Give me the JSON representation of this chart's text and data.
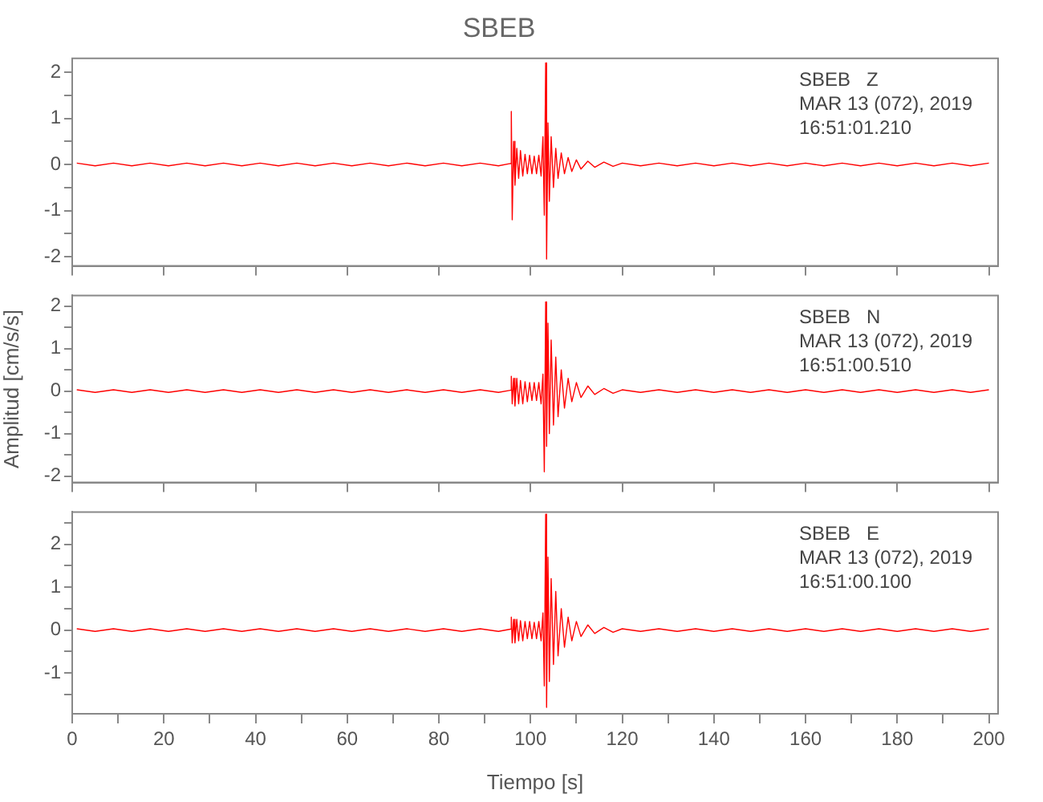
{
  "chart_data": [
    {
      "type": "line",
      "title": "SBEB",
      "annotations": [
        "SBEB   Z",
        "MAR 13 (072), 2019",
        "16:51:01.210"
      ],
      "tick_labels": "y",
      "xlim": [
        0,
        202
      ],
      "ylim": [
        -2.2,
        2.3
      ],
      "xticks": [
        0,
        20,
        40,
        60,
        80,
        100,
        120,
        140,
        160,
        180,
        200
      ],
      "yticks": [
        -2,
        {
          "value": -1.5,
          "label": null
        },
        -1,
        {
          "value": -0.5,
          "label": null
        },
        0,
        {
          "value": 0.5,
          "label": null
        },
        1,
        {
          "value": 1.5,
          "label": null
        },
        2
      ],
      "series": [
        {
          "color": "#ff0000",
          "x": [
            1,
            5,
            9,
            13,
            17,
            21,
            25,
            29,
            33,
            37,
            41,
            45,
            49,
            53,
            57,
            61,
            65,
            69,
            73,
            77,
            81,
            85,
            89,
            93,
            95.6,
            95.8,
            96.0,
            96.3,
            96.6,
            97.0,
            97.4,
            97.8,
            98.3,
            98.8,
            99.3,
            99.8,
            100.3,
            100.8,
            101.3,
            101.8,
            102.3,
            102.7,
            103.0,
            103.3,
            103.5,
            103.8,
            104.1,
            104.5,
            105.0,
            105.5,
            106.0,
            106.7,
            107.4,
            108.2,
            109.0,
            110,
            111,
            112.5,
            114,
            116,
            118,
            120,
            124,
            128,
            132,
            136,
            140,
            144,
            148,
            152,
            156,
            160,
            164,
            168,
            172,
            176,
            180,
            184,
            188,
            192,
            196,
            200
          ],
          "values": [
            0.03,
            -0.03,
            0.03,
            -0.03,
            0.03,
            -0.03,
            0.03,
            -0.03,
            0.03,
            -0.03,
            0.03,
            -0.03,
            0.03,
            -0.03,
            0.03,
            -0.03,
            0.03,
            -0.03,
            0.03,
            -0.03,
            0.03,
            -0.03,
            0.03,
            -0.03,
            0.02,
            1.15,
            -1.2,
            0.5,
            -0.45,
            0.35,
            -0.3,
            0.3,
            -0.25,
            0.22,
            -0.2,
            0.2,
            -0.2,
            0.18,
            -0.2,
            0.2,
            -0.25,
            0.6,
            -1.1,
            2.2,
            -2.05,
            0.9,
            -0.8,
            0.6,
            -0.5,
            0.35,
            -0.3,
            0.25,
            -0.2,
            0.15,
            -0.15,
            0.1,
            -0.1,
            0.07,
            -0.06,
            0.05,
            -0.04,
            0.03,
            -0.03,
            0.03,
            -0.03,
            0.03,
            -0.03,
            0.03,
            -0.03,
            0.03,
            -0.03,
            0.03,
            -0.03,
            0.03,
            -0.03,
            0.03,
            -0.03,
            0.03,
            -0.03,
            0.03,
            -0.03,
            0.03
          ]
        }
      ]
    },
    {
      "type": "line",
      "ylabel": "Amplitud [cm/s/s]",
      "annotations": [
        "SBEB   N",
        "MAR 13 (072), 2019",
        "16:51:00.510"
      ],
      "tick_labels": "y",
      "xlim": [
        0,
        202
      ],
      "ylim": [
        -2.15,
        2.25
      ],
      "xticks": [
        0,
        20,
        40,
        60,
        80,
        100,
        120,
        140,
        160,
        180,
        200
      ],
      "yticks": [
        -2,
        {
          "value": -1.5,
          "label": null
        },
        -1,
        {
          "value": -0.5,
          "label": null
        },
        0,
        {
          "value": 0.5,
          "label": null
        },
        1,
        {
          "value": 1.5,
          "label": null
        },
        2
      ],
      "series": [
        {
          "color": "#ff0000",
          "x": [
            1,
            5,
            9,
            13,
            17,
            21,
            25,
            29,
            33,
            37,
            41,
            45,
            49,
            53,
            57,
            61,
            65,
            69,
            73,
            77,
            81,
            85,
            89,
            93,
            95.6,
            95.8,
            96.0,
            96.3,
            96.6,
            97.0,
            97.4,
            97.8,
            98.3,
            98.8,
            99.3,
            99.8,
            100.3,
            100.8,
            101.3,
            101.8,
            102.3,
            102.7,
            103.0,
            103.3,
            103.5,
            103.8,
            104.1,
            104.5,
            105.0,
            105.5,
            106.0,
            106.7,
            107.4,
            108.2,
            109.0,
            110,
            111,
            112.5,
            114,
            116,
            118,
            120,
            124,
            128,
            132,
            136,
            140,
            144,
            148,
            152,
            156,
            160,
            164,
            168,
            172,
            176,
            180,
            184,
            188,
            192,
            196,
            200
          ],
          "values": [
            0.03,
            -0.03,
            0.03,
            -0.03,
            0.03,
            -0.03,
            0.03,
            -0.03,
            0.03,
            -0.03,
            0.03,
            -0.03,
            0.03,
            -0.03,
            0.03,
            -0.03,
            0.03,
            -0.03,
            0.03,
            -0.03,
            0.03,
            -0.03,
            0.03,
            -0.03,
            0.02,
            0.35,
            -0.3,
            0.3,
            -0.35,
            0.3,
            -0.3,
            0.25,
            -0.3,
            0.22,
            -0.25,
            0.2,
            -0.22,
            0.2,
            -0.22,
            0.2,
            -0.3,
            0.4,
            -1.9,
            2.1,
            -1.3,
            1.6,
            -1.0,
            1.2,
            -0.8,
            0.8,
            -0.6,
            0.5,
            -0.4,
            0.3,
            -0.25,
            0.2,
            -0.15,
            0.12,
            -0.08,
            0.06,
            -0.05,
            0.03,
            -0.03,
            0.03,
            -0.03,
            0.03,
            -0.03,
            0.03,
            -0.03,
            0.03,
            -0.03,
            0.03,
            -0.03,
            0.03,
            -0.03,
            0.03,
            -0.03,
            0.03,
            -0.03,
            0.03,
            -0.03,
            0.03
          ]
        }
      ]
    },
    {
      "type": "line",
      "xlabel": "Tiempo [s]",
      "annotations": [
        "SBEB   E",
        "MAR 13 (072), 2019",
        "16:51:00.100"
      ],
      "xlim": [
        0,
        202
      ],
      "ylim": [
        -1.95,
        2.75
      ],
      "xticks": [
        0,
        {
          "value": 10,
          "label": null
        },
        20,
        {
          "value": 30,
          "label": null
        },
        40,
        {
          "value": 50,
          "label": null
        },
        60,
        {
          "value": 70,
          "label": null
        },
        80,
        {
          "value": 90,
          "label": null
        },
        100,
        {
          "value": 110,
          "label": null
        },
        120,
        {
          "value": 130,
          "label": null
        },
        140,
        {
          "value": 150,
          "label": null
        },
        160,
        {
          "value": 170,
          "label": null
        },
        180,
        {
          "value": 190,
          "label": null
        },
        200
      ],
      "yticks": [
        {
          "value": -1.5,
          "label": null
        },
        -1,
        {
          "value": -0.5,
          "label": null
        },
        0,
        {
          "value": 0.5,
          "label": null
        },
        1,
        {
          "value": 1.5,
          "label": null
        },
        2,
        {
          "value": 2.5,
          "label": null
        }
      ],
      "series": [
        {
          "color": "#ff0000",
          "x": [
            1,
            5,
            9,
            13,
            17,
            21,
            25,
            29,
            33,
            37,
            41,
            45,
            49,
            53,
            57,
            61,
            65,
            69,
            73,
            77,
            81,
            85,
            89,
            93,
            95.6,
            95.8,
            96.0,
            96.3,
            96.6,
            97.0,
            97.4,
            97.8,
            98.3,
            98.8,
            99.3,
            99.8,
            100.3,
            100.8,
            101.3,
            101.8,
            102.3,
            102.7,
            103.0,
            103.3,
            103.5,
            103.8,
            104.1,
            104.5,
            105.0,
            105.5,
            106.0,
            106.7,
            107.4,
            108.2,
            109.0,
            110,
            111,
            112.5,
            114,
            116,
            118,
            120,
            124,
            128,
            132,
            136,
            140,
            144,
            148,
            152,
            156,
            160,
            164,
            168,
            172,
            176,
            180,
            184,
            188,
            192,
            196,
            200
          ],
          "values": [
            0.03,
            -0.03,
            0.03,
            -0.03,
            0.03,
            -0.03,
            0.03,
            -0.03,
            0.03,
            -0.03,
            0.03,
            -0.03,
            0.03,
            -0.03,
            0.03,
            -0.03,
            0.03,
            -0.03,
            0.03,
            -0.03,
            0.03,
            -0.03,
            0.03,
            -0.03,
            0.02,
            0.3,
            -0.3,
            0.25,
            -0.3,
            0.25,
            -0.25,
            0.22,
            -0.25,
            0.2,
            -0.2,
            0.2,
            -0.2,
            0.18,
            -0.2,
            0.2,
            -0.25,
            0.4,
            -1.3,
            2.7,
            -1.8,
            1.7,
            -1.2,
            1.2,
            -0.8,
            0.9,
            -0.6,
            0.5,
            -0.4,
            0.3,
            -0.25,
            0.2,
            -0.15,
            0.12,
            -0.08,
            0.06,
            -0.05,
            0.03,
            -0.03,
            0.03,
            -0.03,
            0.03,
            -0.03,
            0.03,
            -0.03,
            0.03,
            -0.03,
            0.03,
            -0.03,
            0.03,
            -0.03,
            0.03,
            -0.03,
            0.03,
            -0.03,
            0.03,
            -0.03,
            0.03
          ]
        }
      ]
    }
  ]
}
